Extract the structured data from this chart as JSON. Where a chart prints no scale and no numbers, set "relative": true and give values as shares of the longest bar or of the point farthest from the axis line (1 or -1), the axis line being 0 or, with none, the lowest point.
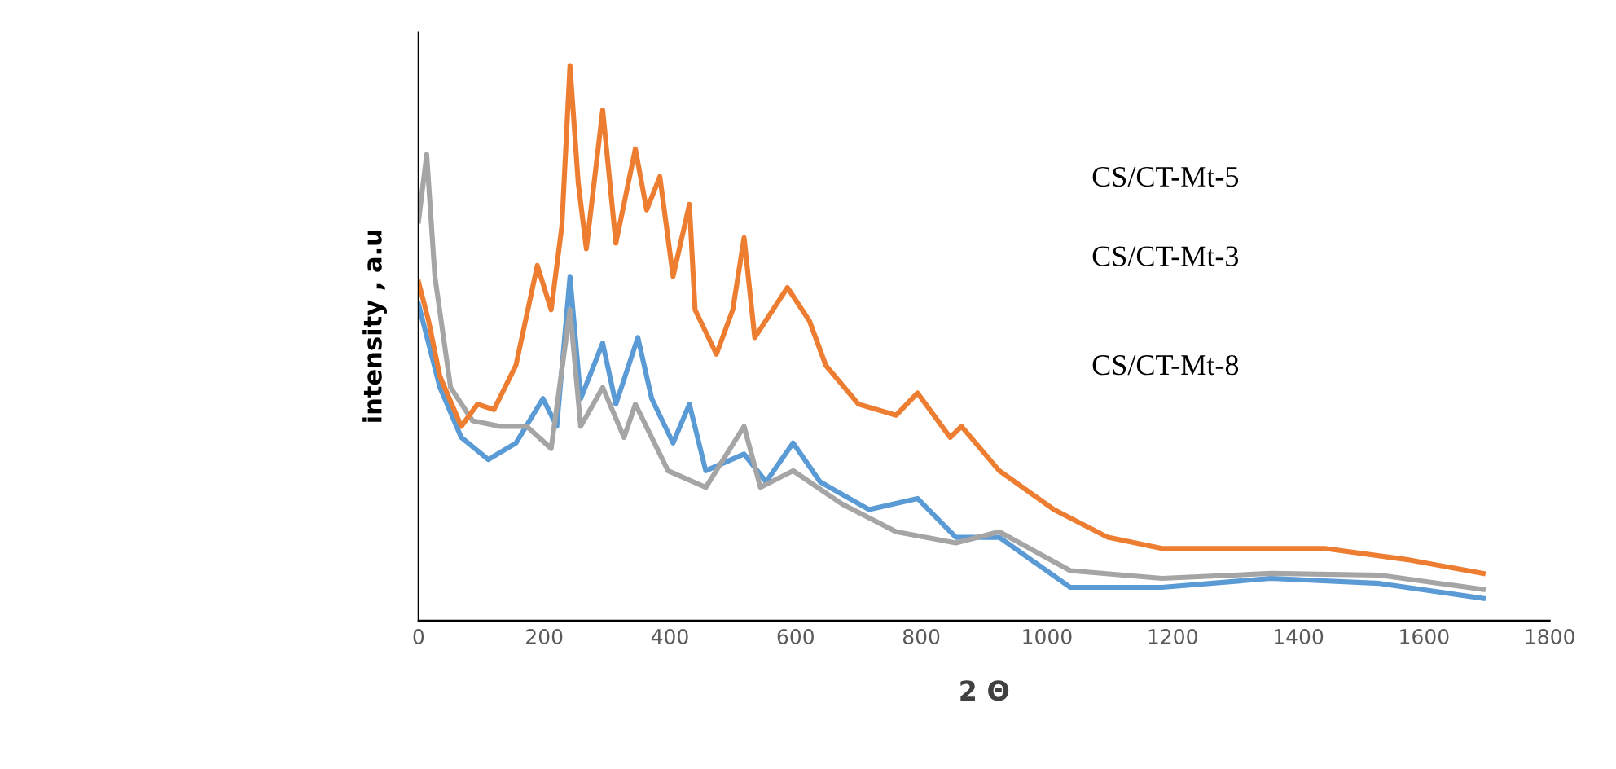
{
  "chart_data": {
    "type": "line",
    "relative": true,
    "xlabel": "2 Θ",
    "ylabel": "intensity , a.u",
    "xlim": [
      0,
      1800
    ],
    "xticks": [
      0,
      200,
      400,
      600,
      800,
      1000,
      1200,
      1400,
      1600,
      1800
    ],
    "grid": false,
    "legend": false,
    "marker": "none",
    "line_style": "solid",
    "annotations": [
      "CS/CT-Mt-5",
      "CS/CT-Mt-3",
      "CS/CT-Mt-8"
    ],
    "series": [
      {
        "color": "#5b9bd5",
        "x": [
          0,
          34,
          68,
          111,
          155,
          198,
          220,
          241,
          258,
          293,
          314,
          349,
          371,
          405,
          431,
          457,
          518,
          553,
          596,
          639,
          717,
          794,
          855,
          924,
          1037,
          1183,
          1356,
          1529,
          1694
        ],
        "values": [
          0.57,
          0.42,
          0.33,
          0.29,
          0.32,
          0.4,
          0.35,
          0.62,
          0.4,
          0.5,
          0.39,
          0.51,
          0.4,
          0.32,
          0.39,
          0.27,
          0.3,
          0.25,
          0.32,
          0.25,
          0.2,
          0.22,
          0.15,
          0.15,
          0.06,
          0.06,
          0.076,
          0.067,
          0.04
        ]
      },
      {
        "color": "#a5a5a5",
        "x": [
          0,
          13,
          26,
          51,
          86,
          129,
          172,
          211,
          241,
          258,
          293,
          327,
          345,
          397,
          457,
          518,
          544,
          596,
          674,
          760,
          855,
          924,
          1037,
          1183,
          1356,
          1529,
          1694
        ],
        "values": [
          0.72,
          0.84,
          0.62,
          0.42,
          0.36,
          0.35,
          0.35,
          0.31,
          0.56,
          0.35,
          0.42,
          0.33,
          0.39,
          0.27,
          0.24,
          0.35,
          0.24,
          0.27,
          0.21,
          0.16,
          0.14,
          0.16,
          0.09,
          0.076,
          0.085,
          0.082,
          0.056
        ]
      },
      {
        "color": "#ed7d31",
        "x": [
          0,
          16,
          34,
          68,
          94,
          120,
          155,
          189,
          211,
          228,
          241,
          254,
          267,
          293,
          314,
          345,
          363,
          384,
          405,
          431,
          440,
          474,
          500,
          518,
          535,
          587,
          622,
          648,
          700,
          760,
          794,
          846,
          864,
          924,
          1011,
          1097,
          1183,
          1312,
          1442,
          1572,
          1694
        ],
        "values": [
          0.61,
          0.54,
          0.44,
          0.35,
          0.39,
          0.38,
          0.46,
          0.64,
          0.56,
          0.71,
          1,
          0.79,
          0.67,
          0.92,
          0.68,
          0.85,
          0.74,
          0.8,
          0.62,
          0.75,
          0.56,
          0.48,
          0.56,
          0.69,
          0.51,
          0.6,
          0.54,
          0.46,
          0.39,
          0.37,
          0.41,
          0.33,
          0.35,
          0.27,
          0.2,
          0.15,
          0.13,
          0.13,
          0.13,
          0.11,
          0.085
        ]
      }
    ]
  }
}
